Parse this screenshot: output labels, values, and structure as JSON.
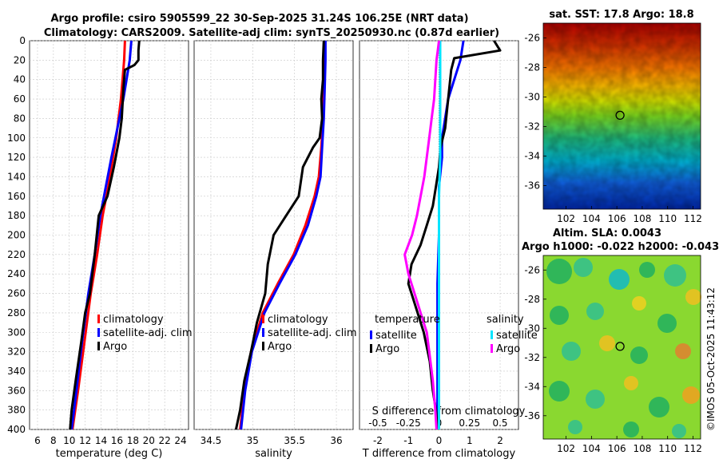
{
  "figure": {
    "title_line1": "Argo profile: csiro 5905599_22 30-Sep-2025 31.24S 106.25E (NRT data)",
    "title_line2": "Climatology: CARS2009. Satellite-adj clim: synTS_20250930.nc (0.87d earlier)",
    "watermark": "©IMOS 05-Oct-2025 11:43:12"
  },
  "colors": {
    "climatology": "#ff0000",
    "satellite": "#0000ff",
    "argo": "#000000",
    "satellite_salinity": "#00e5ff",
    "argo_salinity": "#ff00ff",
    "grid": "#c8c8c8"
  },
  "maps": {
    "sst": {
      "title": "sat. SST: 17.8 Argo: 18.8",
      "x_ticks": [
        "102",
        "104",
        "106",
        "108",
        "110",
        "112"
      ],
      "y_ticks": [
        "-26",
        "-28",
        "-30",
        "-32",
        "-34",
        "-36"
      ],
      "marker_lon": 106.25,
      "marker_lat": -31.24
    },
    "sla": {
      "title_line1": "Altim. SLA: 0.0043",
      "title_line2": "Argo h1000: -0.022 h2000: -0.043",
      "x_ticks": [
        "102",
        "104",
        "106",
        "108",
        "110",
        "112"
      ],
      "y_ticks": [
        "-26",
        "-28",
        "-30",
        "-32",
        "-34",
        "-36"
      ],
      "marker_lon": 106.25,
      "marker_lat": -31.24
    }
  },
  "chart_data": [
    {
      "type": "line",
      "name": "temperature",
      "xlabel": "temperature (deg C)",
      "ylabel": "",
      "xlim": [
        5,
        25
      ],
      "ylim": [
        0,
        400
      ],
      "y_reversed": true,
      "grid": true,
      "x_ticks": [
        "6",
        "8",
        "10",
        "12",
        "14",
        "16",
        "18",
        "20",
        "22",
        "24"
      ],
      "y_ticks": [
        "0",
        "20",
        "40",
        "60",
        "80",
        "100",
        "120",
        "140",
        "160",
        "180",
        "200",
        "220",
        "240",
        "260",
        "280",
        "300",
        "320",
        "340",
        "360",
        "380",
        "400"
      ],
      "legend": [
        "climatology",
        "satellite-adj. clim",
        "Argo"
      ],
      "legend_position": "center-right",
      "series": [
        {
          "name": "climatology",
          "color": "#ff0000",
          "x": [
            17.0,
            16.9,
            16.7,
            16.5,
            16.2,
            15.9,
            15.5,
            14.9,
            14.2,
            13.5,
            12.7,
            11.9,
            11.1,
            10.4
          ],
          "y": [
            0,
            20,
            40,
            60,
            80,
            100,
            120,
            150,
            180,
            220,
            260,
            310,
            360,
            400
          ]
        },
        {
          "name": "satellite-adj. clim",
          "color": "#0000ff",
          "x": [
            17.8,
            17.6,
            17.2,
            16.8,
            16.3,
            15.8,
            15.3,
            14.6,
            13.9,
            13.2,
            12.4,
            11.6,
            10.9,
            10.3
          ],
          "y": [
            0,
            20,
            40,
            60,
            80,
            100,
            120,
            150,
            180,
            220,
            260,
            310,
            360,
            400
          ]
        },
        {
          "name": "Argo",
          "color": "#000000",
          "x": [
            18.8,
            18.7,
            18.7,
            18.2,
            17.0,
            16.8,
            16.6,
            16.3,
            15.6,
            14.8,
            13.7,
            13.2,
            12.6,
            12.0,
            11.5,
            10.8,
            10.3,
            10.1
          ],
          "y": [
            0,
            10,
            20,
            25,
            30,
            50,
            80,
            100,
            130,
            160,
            180,
            220,
            260,
            280,
            310,
            350,
            380,
            400
          ]
        }
      ]
    },
    {
      "type": "line",
      "name": "salinity",
      "xlabel": "salinity",
      "ylabel": "",
      "xlim": [
        34.3,
        36.2
      ],
      "ylim": [
        0,
        400
      ],
      "y_reversed": true,
      "grid": true,
      "x_ticks": [
        "34.5",
        "35",
        "35.5",
        "36"
      ],
      "legend": [
        "climatology",
        "satellite-adj. clim",
        "Argo"
      ],
      "legend_position": "center-right",
      "series": [
        {
          "name": "climatology",
          "color": "#ff0000",
          "x": [
            35.86,
            35.86,
            35.85,
            35.84,
            35.82,
            35.79,
            35.74,
            35.63,
            35.49,
            35.3,
            35.12,
            34.98,
            34.9,
            34.85
          ],
          "y": [
            0,
            20,
            50,
            80,
            110,
            140,
            160,
            190,
            220,
            250,
            280,
            320,
            360,
            400
          ]
        },
        {
          "name": "satellite-adj. clim",
          "color": "#0000ff",
          "x": [
            35.87,
            35.87,
            35.86,
            35.85,
            35.83,
            35.81,
            35.76,
            35.66,
            35.51,
            35.32,
            35.14,
            34.99,
            34.91,
            34.86
          ],
          "y": [
            0,
            20,
            50,
            80,
            110,
            140,
            160,
            190,
            220,
            250,
            280,
            320,
            360,
            400
          ]
        },
        {
          "name": "Argo",
          "color": "#000000",
          "x": [
            35.85,
            35.84,
            35.84,
            35.82,
            35.83,
            35.8,
            35.72,
            35.6,
            35.55,
            35.4,
            35.25,
            35.18,
            35.15,
            35.05,
            34.98,
            34.9,
            34.85,
            34.8
          ],
          "y": [
            0,
            20,
            40,
            60,
            80,
            100,
            110,
            130,
            160,
            180,
            200,
            230,
            260,
            290,
            320,
            350,
            380,
            400
          ]
        }
      ]
    },
    {
      "type": "line",
      "name": "difference from climatology",
      "xlabel": "T difference from climatology",
      "x2label": "S difference from climatology",
      "xlim": [
        -2.6,
        2.6
      ],
      "x2lim": [
        -0.65,
        0.65
      ],
      "ylim": [
        0,
        400
      ],
      "y_reversed": true,
      "grid": true,
      "x_ticks": [
        "-2",
        "-1",
        "0",
        "1",
        "2"
      ],
      "x2_ticks": [
        "-0.5",
        "-0.25",
        "0",
        "0.25",
        "0.5"
      ],
      "legend_groups": [
        {
          "heading": "temperature",
          "entries": [
            "satellite",
            "Argo"
          ]
        },
        {
          "heading": "salinity",
          "entries": [
            "satellite",
            "Argo"
          ]
        }
      ],
      "legend_position": "center",
      "series": [
        {
          "name": "temperature satellite",
          "color": "#0000ff",
          "axis": "T",
          "x": [
            0.8,
            0.7,
            0.5,
            0.3,
            0.2,
            0.1,
            0.1,
            0.0,
            0.0,
            -0.05,
            -0.05,
            -0.05,
            -0.05
          ],
          "y": [
            0,
            20,
            40,
            60,
            80,
            100,
            120,
            150,
            200,
            250,
            300,
            350,
            400
          ]
        },
        {
          "name": "temperature Argo",
          "color": "#000000",
          "axis": "T",
          "x": [
            1.8,
            2.0,
            0.5,
            0.4,
            0.3,
            0.2,
            0.05,
            0.0,
            -0.1,
            -0.2,
            -0.4,
            -0.6,
            -0.9,
            -1.0,
            -0.8,
            -0.5,
            -0.3,
            -0.2,
            -0.1,
            -0.05
          ],
          "y": [
            0,
            10,
            18,
            30,
            60,
            90,
            110,
            130,
            150,
            170,
            190,
            210,
            230,
            250,
            270,
            300,
            330,
            360,
            380,
            400
          ]
        },
        {
          "name": "salinity satellite",
          "color": "#00e5ff",
          "axis": "S",
          "x": [
            0.01,
            0.01,
            0.01,
            0.01,
            0.0,
            0.0,
            0.0,
            0.0,
            0.0,
            0.0,
            0.0
          ],
          "y": [
            0,
            40,
            80,
            120,
            160,
            200,
            240,
            280,
            320,
            360,
            400
          ]
        },
        {
          "name": "salinity Argo",
          "color": "#ff00ff",
          "axis": "S",
          "x": [
            0.0,
            -0.01,
            -0.02,
            -0.03,
            -0.04,
            -0.06,
            -0.08,
            -0.1,
            -0.12,
            -0.15,
            -0.18,
            -0.22,
            -0.25,
            -0.28,
            -0.25,
            -0.2,
            -0.15,
            -0.1,
            -0.08,
            -0.05,
            -0.03,
            -0.02
          ],
          "y": [
            0,
            10,
            20,
            40,
            60,
            80,
            100,
            120,
            140,
            160,
            180,
            200,
            210,
            220,
            240,
            260,
            280,
            300,
            320,
            350,
            380,
            400
          ]
        }
      ]
    }
  ]
}
